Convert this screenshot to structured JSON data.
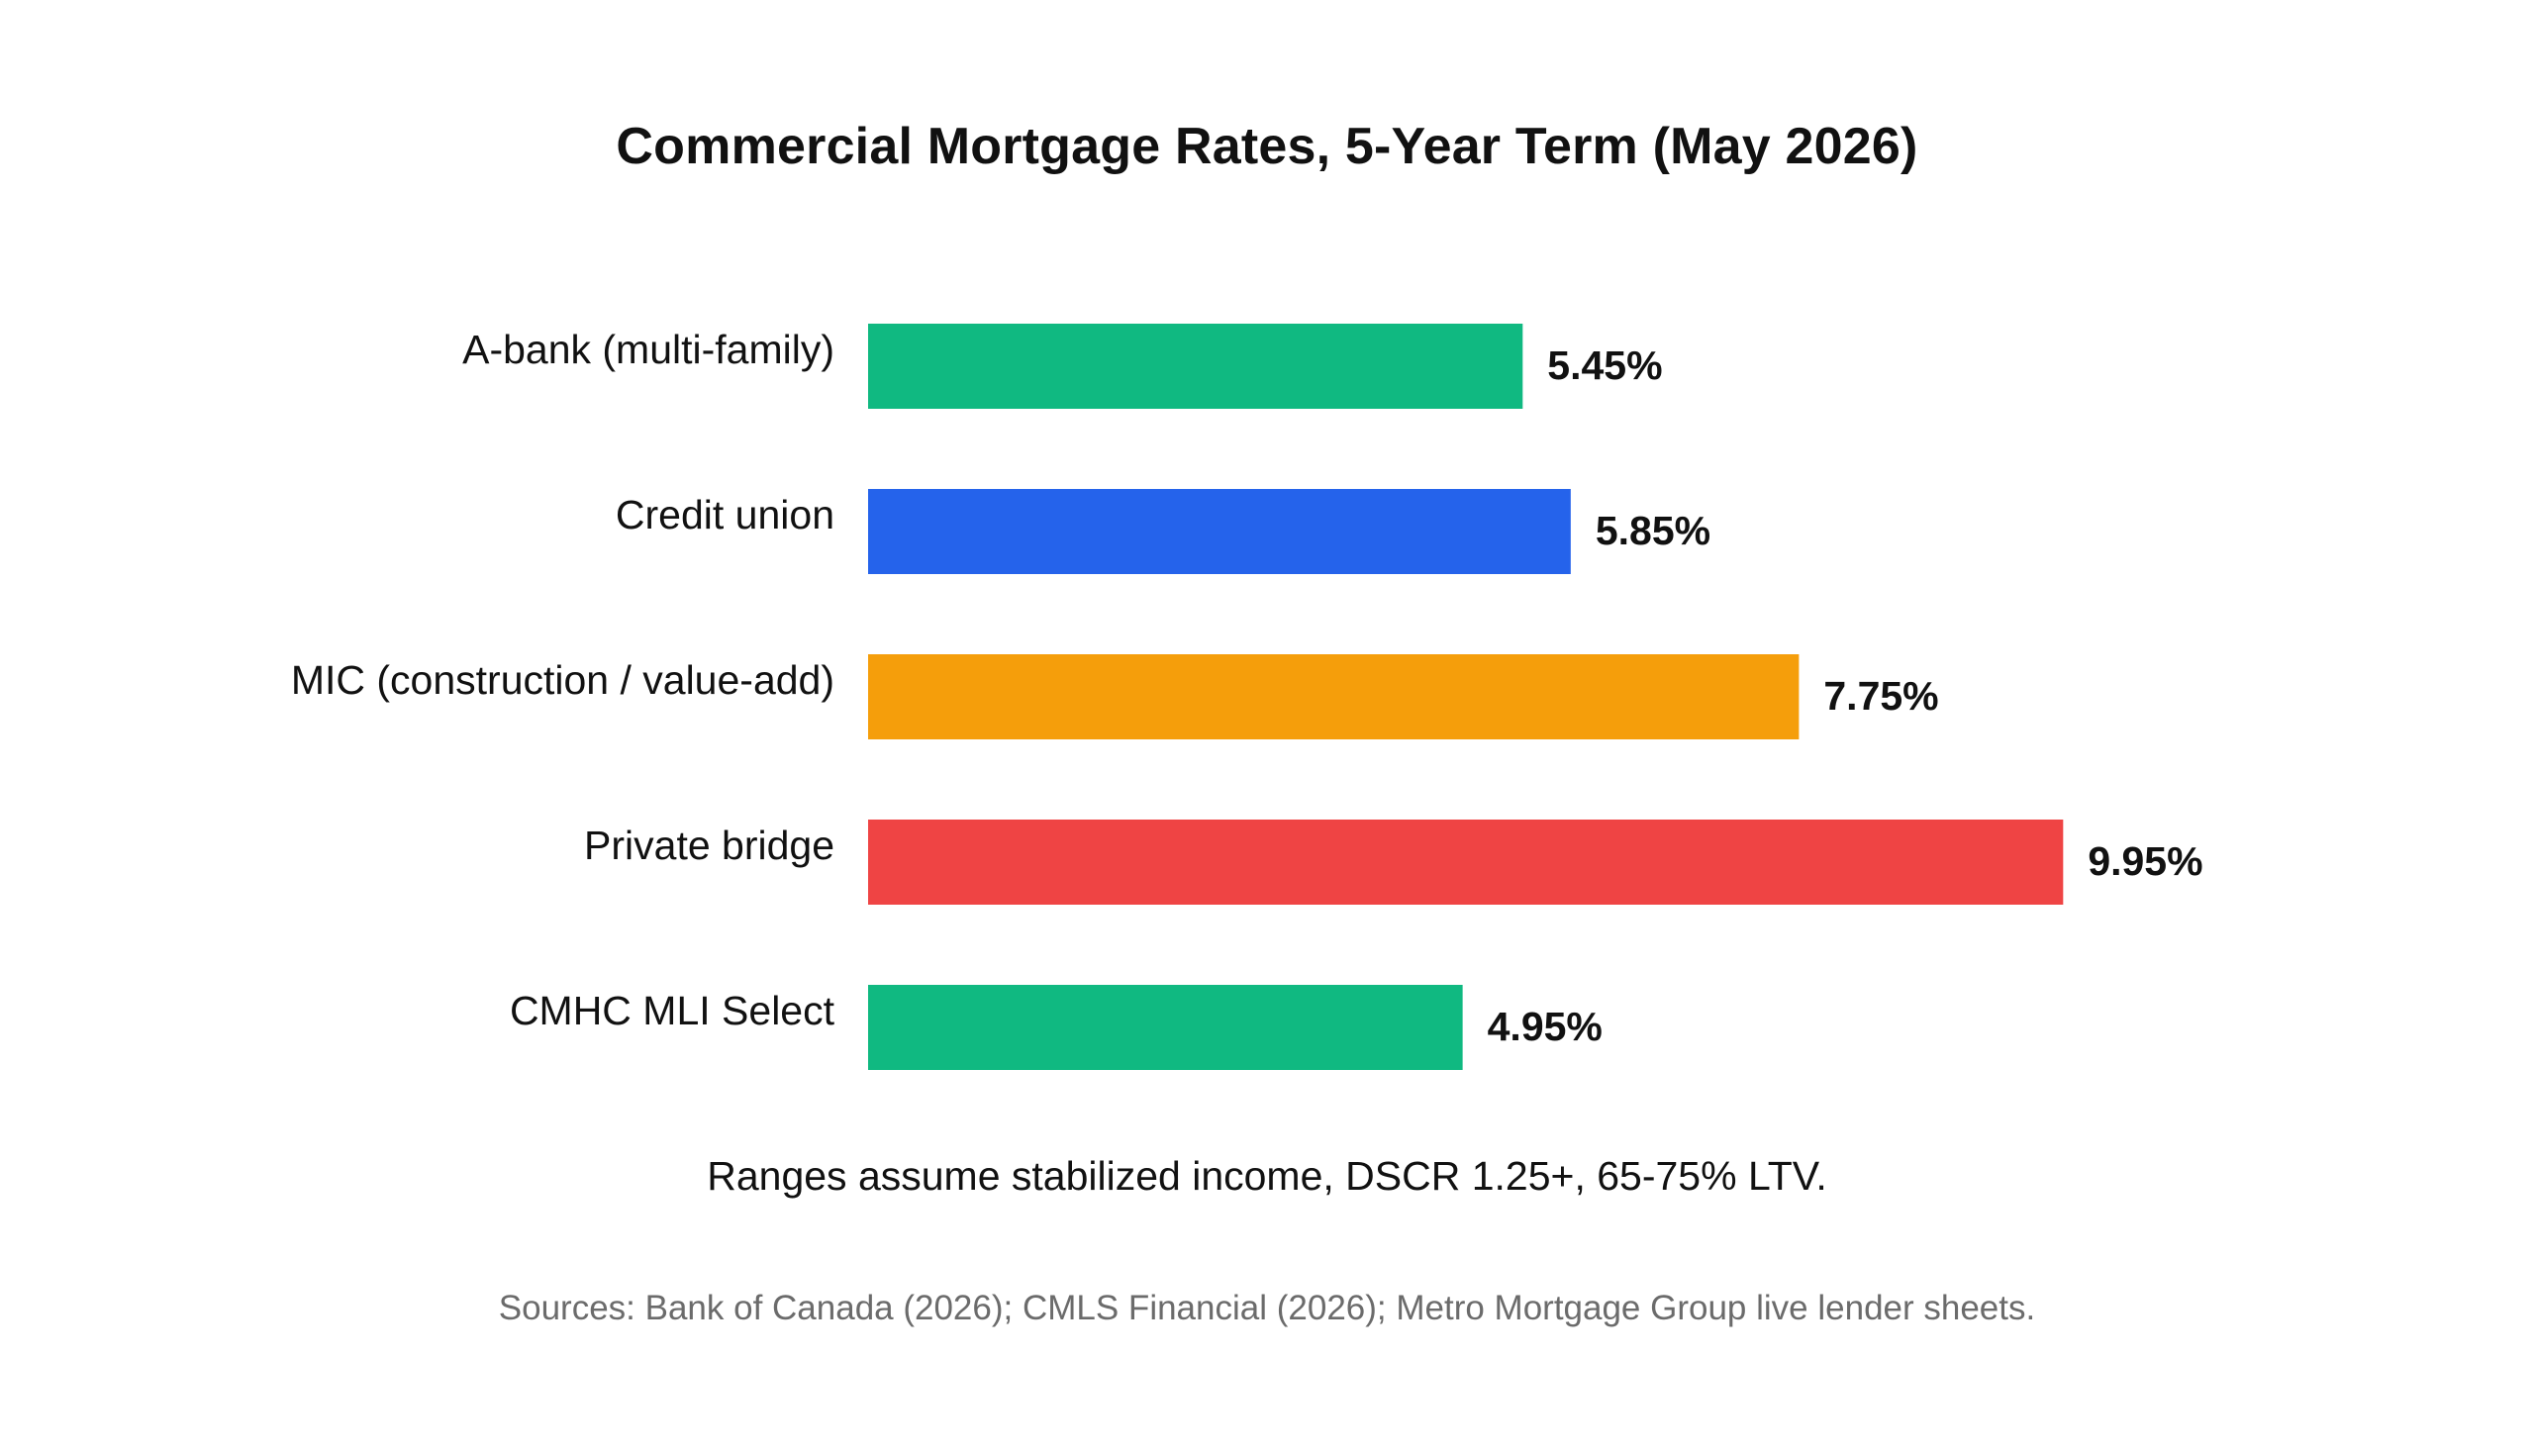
{
  "chart_data": {
    "type": "bar",
    "orientation": "horizontal",
    "title": "Commercial Mortgage Rates, 5-Year Term (May 2026)",
    "subtitle": "Ranges assume stabilized income, DSCR 1.25+, 65-75% LTV.",
    "source": "Sources: Bank of Canada (2026); CMLS Financial (2026); Metro Mortgage Group live lender sheets.",
    "categories": [
      "A-bank (multi-family)",
      "Credit union",
      "MIC (construction / value-add)",
      "Private bridge",
      "CMHC MLI Select"
    ],
    "values": [
      5.45,
      5.85,
      7.75,
      9.95,
      4.95
    ],
    "value_labels": [
      "5.45%",
      "5.85%",
      "7.75%",
      "9.95%",
      "4.95%"
    ],
    "colors": [
      "#10b981",
      "#2563eb",
      "#f59e0b",
      "#ef4444",
      "#10b981"
    ],
    "xlim": [
      0,
      11.2
    ],
    "grid": false,
    "legend": "none"
  }
}
